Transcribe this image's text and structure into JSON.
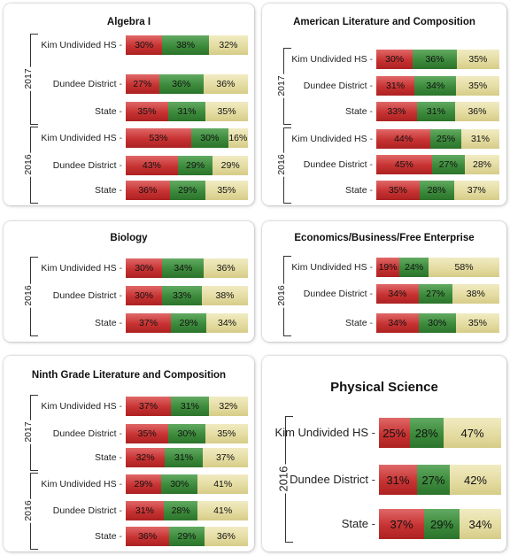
{
  "chart_data": [
    {
      "type": "bar",
      "title": "Algebra I",
      "groups": [
        {
          "year": "2017",
          "rows": [
            {
              "label": "Kim Undivided HS",
              "values": [
                30,
                38,
                32
              ]
            },
            {
              "label": "Dundee District",
              "values": [
                27,
                36,
                36
              ]
            },
            {
              "label": "State",
              "values": [
                35,
                31,
                35
              ]
            }
          ]
        },
        {
          "year": "2016",
          "rows": [
            {
              "label": "Kim Undivided HS",
              "values": [
                53,
                30,
                16
              ]
            },
            {
              "label": "Dundee District",
              "values": [
                43,
                29,
                29
              ]
            },
            {
              "label": "State",
              "values": [
                36,
                29,
                35
              ]
            }
          ]
        }
      ]
    },
    {
      "type": "bar",
      "title": "American Literature and Composition",
      "groups": [
        {
          "year": "2017",
          "rows": [
            {
              "label": "Kim Undivided HS",
              "values": [
                30,
                36,
                35
              ]
            },
            {
              "label": "Dundee District",
              "values": [
                31,
                34,
                35
              ]
            },
            {
              "label": "State",
              "values": [
                33,
                31,
                36
              ]
            }
          ]
        },
        {
          "year": "2016",
          "rows": [
            {
              "label": "Kim Undivided HS",
              "values": [
                44,
                25,
                31
              ]
            },
            {
              "label": "Dundee District",
              "values": [
                45,
                27,
                28
              ]
            },
            {
              "label": "State",
              "values": [
                35,
                28,
                37
              ]
            }
          ]
        }
      ]
    },
    {
      "type": "bar",
      "title": "Biology",
      "groups": [
        {
          "year": "2016",
          "rows": [
            {
              "label": "Kim Undivided HS",
              "values": [
                30,
                34,
                36
              ]
            },
            {
              "label": "Dundee District",
              "values": [
                30,
                33,
                38
              ]
            },
            {
              "label": "State",
              "values": [
                37,
                29,
                34
              ]
            }
          ]
        }
      ]
    },
    {
      "type": "bar",
      "title": "Economics/Business/Free Enterprise",
      "groups": [
        {
          "year": "2016",
          "rows": [
            {
              "label": "Kim Undivided HS",
              "values": [
                19,
                24,
                58
              ]
            },
            {
              "label": "Dundee District",
              "values": [
                34,
                27,
                38
              ]
            },
            {
              "label": "State",
              "values": [
                34,
                30,
                35
              ]
            }
          ]
        }
      ]
    },
    {
      "type": "bar",
      "title": "Ninth Grade Literature and Composition",
      "groups": [
        {
          "year": "2017",
          "rows": [
            {
              "label": "Kim Undivided HS",
              "values": [
                37,
                31,
                32
              ]
            },
            {
              "label": "Dundee District",
              "values": [
                35,
                30,
                35
              ]
            },
            {
              "label": "State",
              "values": [
                32,
                31,
                37
              ]
            }
          ]
        },
        {
          "year": "2016",
          "rows": [
            {
              "label": "Kim Undivided HS",
              "values": [
                29,
                30,
                41
              ]
            },
            {
              "label": "Dundee District",
              "values": [
                31,
                28,
                41
              ]
            },
            {
              "label": "State",
              "values": [
                36,
                29,
                36
              ]
            }
          ]
        }
      ]
    },
    {
      "type": "bar",
      "title": "Physical Science",
      "groups": [
        {
          "year": "2016",
          "rows": [
            {
              "label": "Kim Undivided HS",
              "values": [
                25,
                28,
                47
              ]
            },
            {
              "label": "Dundee District",
              "values": [
                31,
                27,
                42
              ]
            },
            {
              "label": "State",
              "values": [
                37,
                29,
                34
              ]
            }
          ]
        }
      ]
    }
  ],
  "segment_colors": [
    "#c73232",
    "#3c8a3c",
    "#e4dca2"
  ]
}
